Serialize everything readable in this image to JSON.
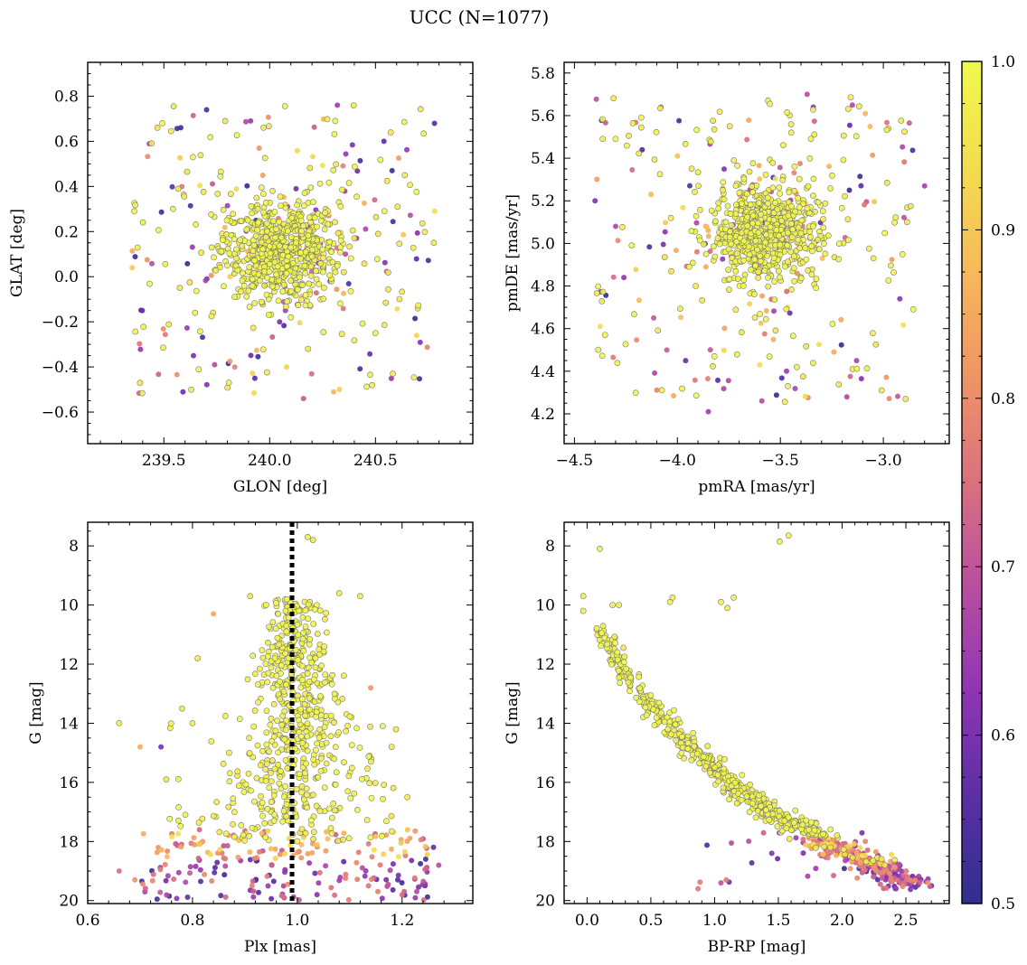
{
  "figure": {
    "suptitle": "UCC (N=1077)",
    "colorbar": {
      "min": 0.5,
      "max": 1.0,
      "ticks": [
        "0.5",
        "0.6",
        "0.7",
        "0.8",
        "0.9",
        "1.0"
      ],
      "tick_values": [
        0.5,
        0.6,
        0.7,
        0.8,
        0.9,
        1.0
      ],
      "colormap": "plasma",
      "stops": [
        "#2f2f8f",
        "#5a2fa3",
        "#8e35b5",
        "#b84ea0",
        "#d9717f",
        "#ef9466",
        "#f6b95b",
        "#f3dd4f",
        "#f0f94d"
      ]
    }
  },
  "chart_data": [
    {
      "id": "radec",
      "type": "scatter",
      "xlabel": "GLON [deg]",
      "ylabel": "GLAT [deg]",
      "xlim": [
        239.14,
        240.96
      ],
      "ylim": [
        -0.74,
        0.95
      ],
      "xticks": [
        239.5,
        240.0,
        240.5
      ],
      "xtick_labels": [
        "239.5",
        "240.0",
        "240.5"
      ],
      "yticks": [
        -0.6,
        -0.4,
        -0.2,
        0.0,
        0.2,
        0.4,
        0.6,
        0.8
      ],
      "ytick_labels": [
        "−0.6",
        "−0.4",
        "−0.2",
        "0.0",
        "0.2",
        "0.4",
        "0.6",
        "0.8"
      ],
      "cluster": {
        "x": 240.05,
        "y": 0.12,
        "sx": 0.14,
        "sy": 0.11
      },
      "field": {
        "x": [
          239.35,
          240.78
        ],
        "y": [
          -0.52,
          0.76
        ]
      },
      "points": [
        [
          239.79,
          0.69
        ],
        [
          239.91,
          0.69
        ],
        [
          239.58,
          0.66
        ],
        [
          239.47,
          0.66
        ],
        [
          240.32,
          0.76
        ],
        [
          240.31,
          0.69
        ],
        [
          240.54,
          0.6
        ],
        [
          240.16,
          -0.54
        ],
        [
          240.33,
          -0.5
        ],
        [
          239.93,
          -0.45
        ],
        [
          240.08,
          -0.4
        ],
        [
          239.74,
          -0.39
        ],
        [
          239.64,
          -0.35
        ],
        [
          239.36,
          0.29
        ],
        [
          239.35,
          0.04
        ],
        [
          240.78,
          0.29
        ],
        [
          240.7,
          -0.14
        ],
        [
          240.5,
          -0.25
        ]
      ]
    },
    {
      "id": "pm",
      "type": "scatter",
      "xlabel": "pmRA [mas/yr]",
      "ylabel": "pmDE [mas/yr]",
      "xlim": [
        -4.55,
        -2.68
      ],
      "ylim": [
        4.06,
        5.85
      ],
      "xticks": [
        -4.5,
        -4.0,
        -3.5,
        -3.0
      ],
      "xtick_labels": [
        "−4.5",
        "−4.0",
        "−3.5",
        "−3.0"
      ],
      "yticks": [
        4.2,
        4.4,
        4.6,
        4.8,
        5.0,
        5.2,
        5.4,
        5.6,
        5.8
      ],
      "ytick_labels": [
        "4.2",
        "4.4",
        "4.6",
        "4.8",
        "5.0",
        "5.2",
        "5.4",
        "5.6",
        "5.8"
      ],
      "cluster": {
        "x": -3.58,
        "y": 5.05,
        "sx": 0.13,
        "sy": 0.12
      },
      "field": {
        "x": [
          -4.4,
          -2.85
        ],
        "y": [
          4.25,
          5.7
        ]
      },
      "points": [
        [
          -3.85,
          4.21
        ],
        [
          -3.59,
          4.26
        ],
        [
          -3.6,
          4.43
        ],
        [
          -3.47,
          4.4
        ],
        [
          -4.4,
          5.2
        ],
        [
          -2.8,
          5.27
        ],
        [
          -3.34,
          5.64
        ],
        [
          -3.37,
          5.7
        ],
        [
          -3.15,
          5.65
        ],
        [
          -4.08,
          5.64
        ],
        [
          -3.13,
          4.45
        ],
        [
          -2.92,
          4.74
        ],
        [
          -4.3,
          5.08
        ],
        [
          -4.26,
          4.84
        ],
        [
          -3.56,
          5.67
        ],
        [
          -3.96,
          4.45
        ]
      ]
    },
    {
      "id": "plx",
      "type": "scatter",
      "xlabel": "Plx [mas]",
      "ylabel": "G [mag]",
      "xlim": [
        0.6,
        1.335
      ],
      "ylim": [
        20.1,
        7.2
      ],
      "xticks": [
        0.6,
        0.8,
        1.0,
        1.2
      ],
      "xtick_labels": [
        "0.6",
        "0.8",
        "1.0",
        "1.2"
      ],
      "yticks": [
        8,
        10,
        12,
        14,
        16,
        18,
        20
      ],
      "ytick_labels": [
        "8",
        "10",
        "12",
        "14",
        "16",
        "18",
        "20"
      ],
      "reference_line": {
        "x": 0.99,
        "style": "dotted"
      },
      "points": [
        [
          1.02,
          7.7
        ],
        [
          1.03,
          7.8
        ],
        [
          0.91,
          9.7
        ],
        [
          1.08,
          9.6
        ],
        [
          1.12,
          9.7
        ],
        [
          0.66,
          14.0
        ],
        [
          0.7,
          14.8
        ],
        [
          0.74,
          14.8
        ],
        [
          0.78,
          13.5
        ],
        [
          0.8,
          14.0
        ],
        [
          0.84,
          10.3
        ],
        [
          0.81,
          11.8
        ],
        [
          1.18,
          14.8
        ],
        [
          1.21,
          16.5
        ],
        [
          1.26,
          18.2
        ],
        [
          1.27,
          18.8
        ],
        [
          0.66,
          19.0
        ],
        [
          0.69,
          19.3
        ],
        [
          1.14,
          12.8
        ],
        [
          0.75,
          15.9
        ]
      ]
    },
    {
      "id": "cmd",
      "type": "scatter",
      "xlabel": "BP-RP [mag]",
      "ylabel": "G [mag]",
      "xlim": [
        -0.18,
        2.84
      ],
      "ylim": [
        20.1,
        7.2
      ],
      "xticks": [
        0.0,
        0.5,
        1.0,
        1.5,
        2.0,
        2.5
      ],
      "xtick_labels": [
        "0.0",
        "0.5",
        "1.0",
        "1.5",
        "2.0",
        "2.5"
      ],
      "yticks": [
        8,
        10,
        12,
        14,
        16,
        18,
        20
      ],
      "ytick_labels": [
        "8",
        "10",
        "12",
        "14",
        "16",
        "18",
        "20"
      ],
      "sequence": [
        [
          0.1,
          10.6
        ],
        [
          0.25,
          12.0
        ],
        [
          0.5,
          13.5
        ],
        [
          0.8,
          14.8
        ],
        [
          1.1,
          15.9
        ],
        [
          1.4,
          16.9
        ],
        [
          1.7,
          17.6
        ],
        [
          2.0,
          18.3
        ],
        [
          2.3,
          18.9
        ],
        [
          2.55,
          19.5
        ]
      ],
      "points": [
        [
          0.1,
          8.1
        ],
        [
          1.51,
          7.85
        ],
        [
          1.58,
          7.65
        ],
        [
          -0.03,
          9.7
        ],
        [
          -0.03,
          10.2
        ],
        [
          0.67,
          9.75
        ],
        [
          0.65,
          9.9
        ],
        [
          1.05,
          9.9
        ],
        [
          1.1,
          10.1
        ],
        [
          1.15,
          9.75
        ],
        [
          0.2,
          10.0
        ],
        [
          0.25,
          10.0
        ],
        [
          1.05,
          19.4
        ],
        [
          2.7,
          19.5
        ]
      ]
    }
  ]
}
